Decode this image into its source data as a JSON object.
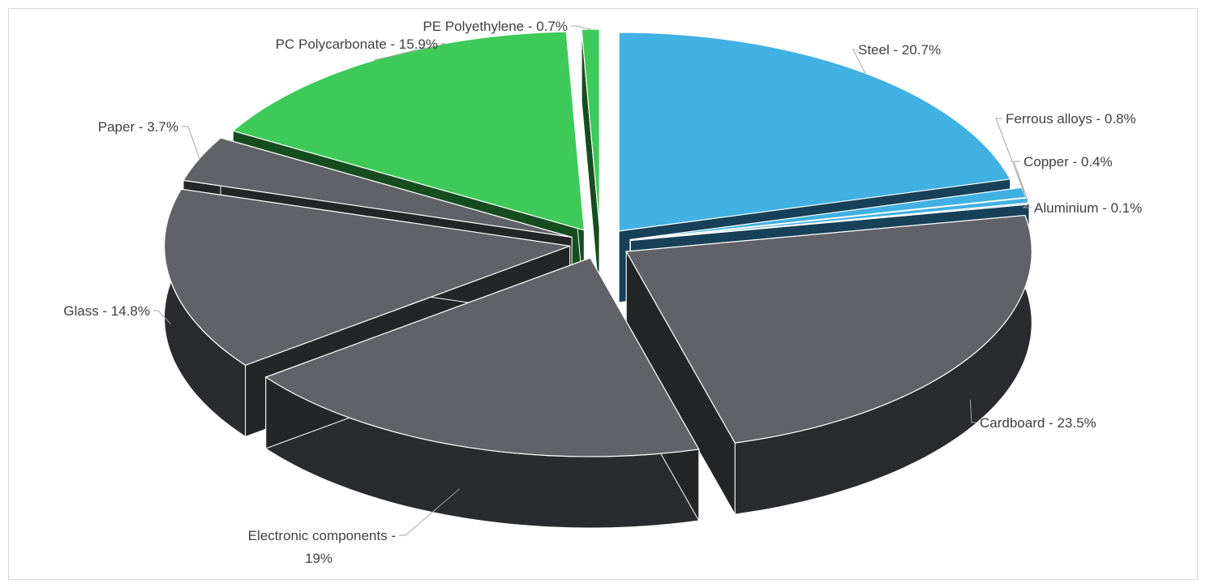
{
  "chart_data": {
    "type": "pie",
    "style": "3d-exploded",
    "start_angle_deg": 0,
    "direction": "clockwise",
    "slices": [
      {
        "label": "Steel - 20.7%",
        "value": 20.7,
        "top": "#41b0e2",
        "side": "#1b4c68"
      },
      {
        "label": "Ferrous alloys - 0.8%",
        "value": 0.8,
        "top": "#41b0e2",
        "side": "#1b4c68"
      },
      {
        "label": "Copper - 0.4%",
        "value": 0.4,
        "top": "#41b0e2",
        "side": "#1b4c68"
      },
      {
        "label": "Aluminium - 0.1%",
        "value": 0.1,
        "top": "#41b0e2",
        "side": "#1b4c68"
      },
      {
        "label": "Cardboard - 23.5%",
        "value": 23.5,
        "top": "#616268",
        "side": "#2a2b2e"
      },
      {
        "label": "Electronic components - 19%",
        "label_lines": [
          "Electronic components -",
          "19%"
        ],
        "value": 19,
        "top": "#616268",
        "side": "#2a2b2e"
      },
      {
        "label": "Glass - 14.8%",
        "value": 14.8,
        "top": "#616268",
        "side": "#2a2b2e"
      },
      {
        "label": "Paper - 3.7%",
        "value": 3.7,
        "top": "#616268",
        "side": "#2a2b2e"
      },
      {
        "label": "PC Polycarbonate - 15.9%",
        "value": 15.9,
        "top": "#3dca58",
        "side": "#1a5a25"
      },
      {
        "label": "PE Polyethylene - 0.7%",
        "value": 0.7,
        "top": "#3dca58",
        "side": "#1a5a25"
      }
    ]
  }
}
